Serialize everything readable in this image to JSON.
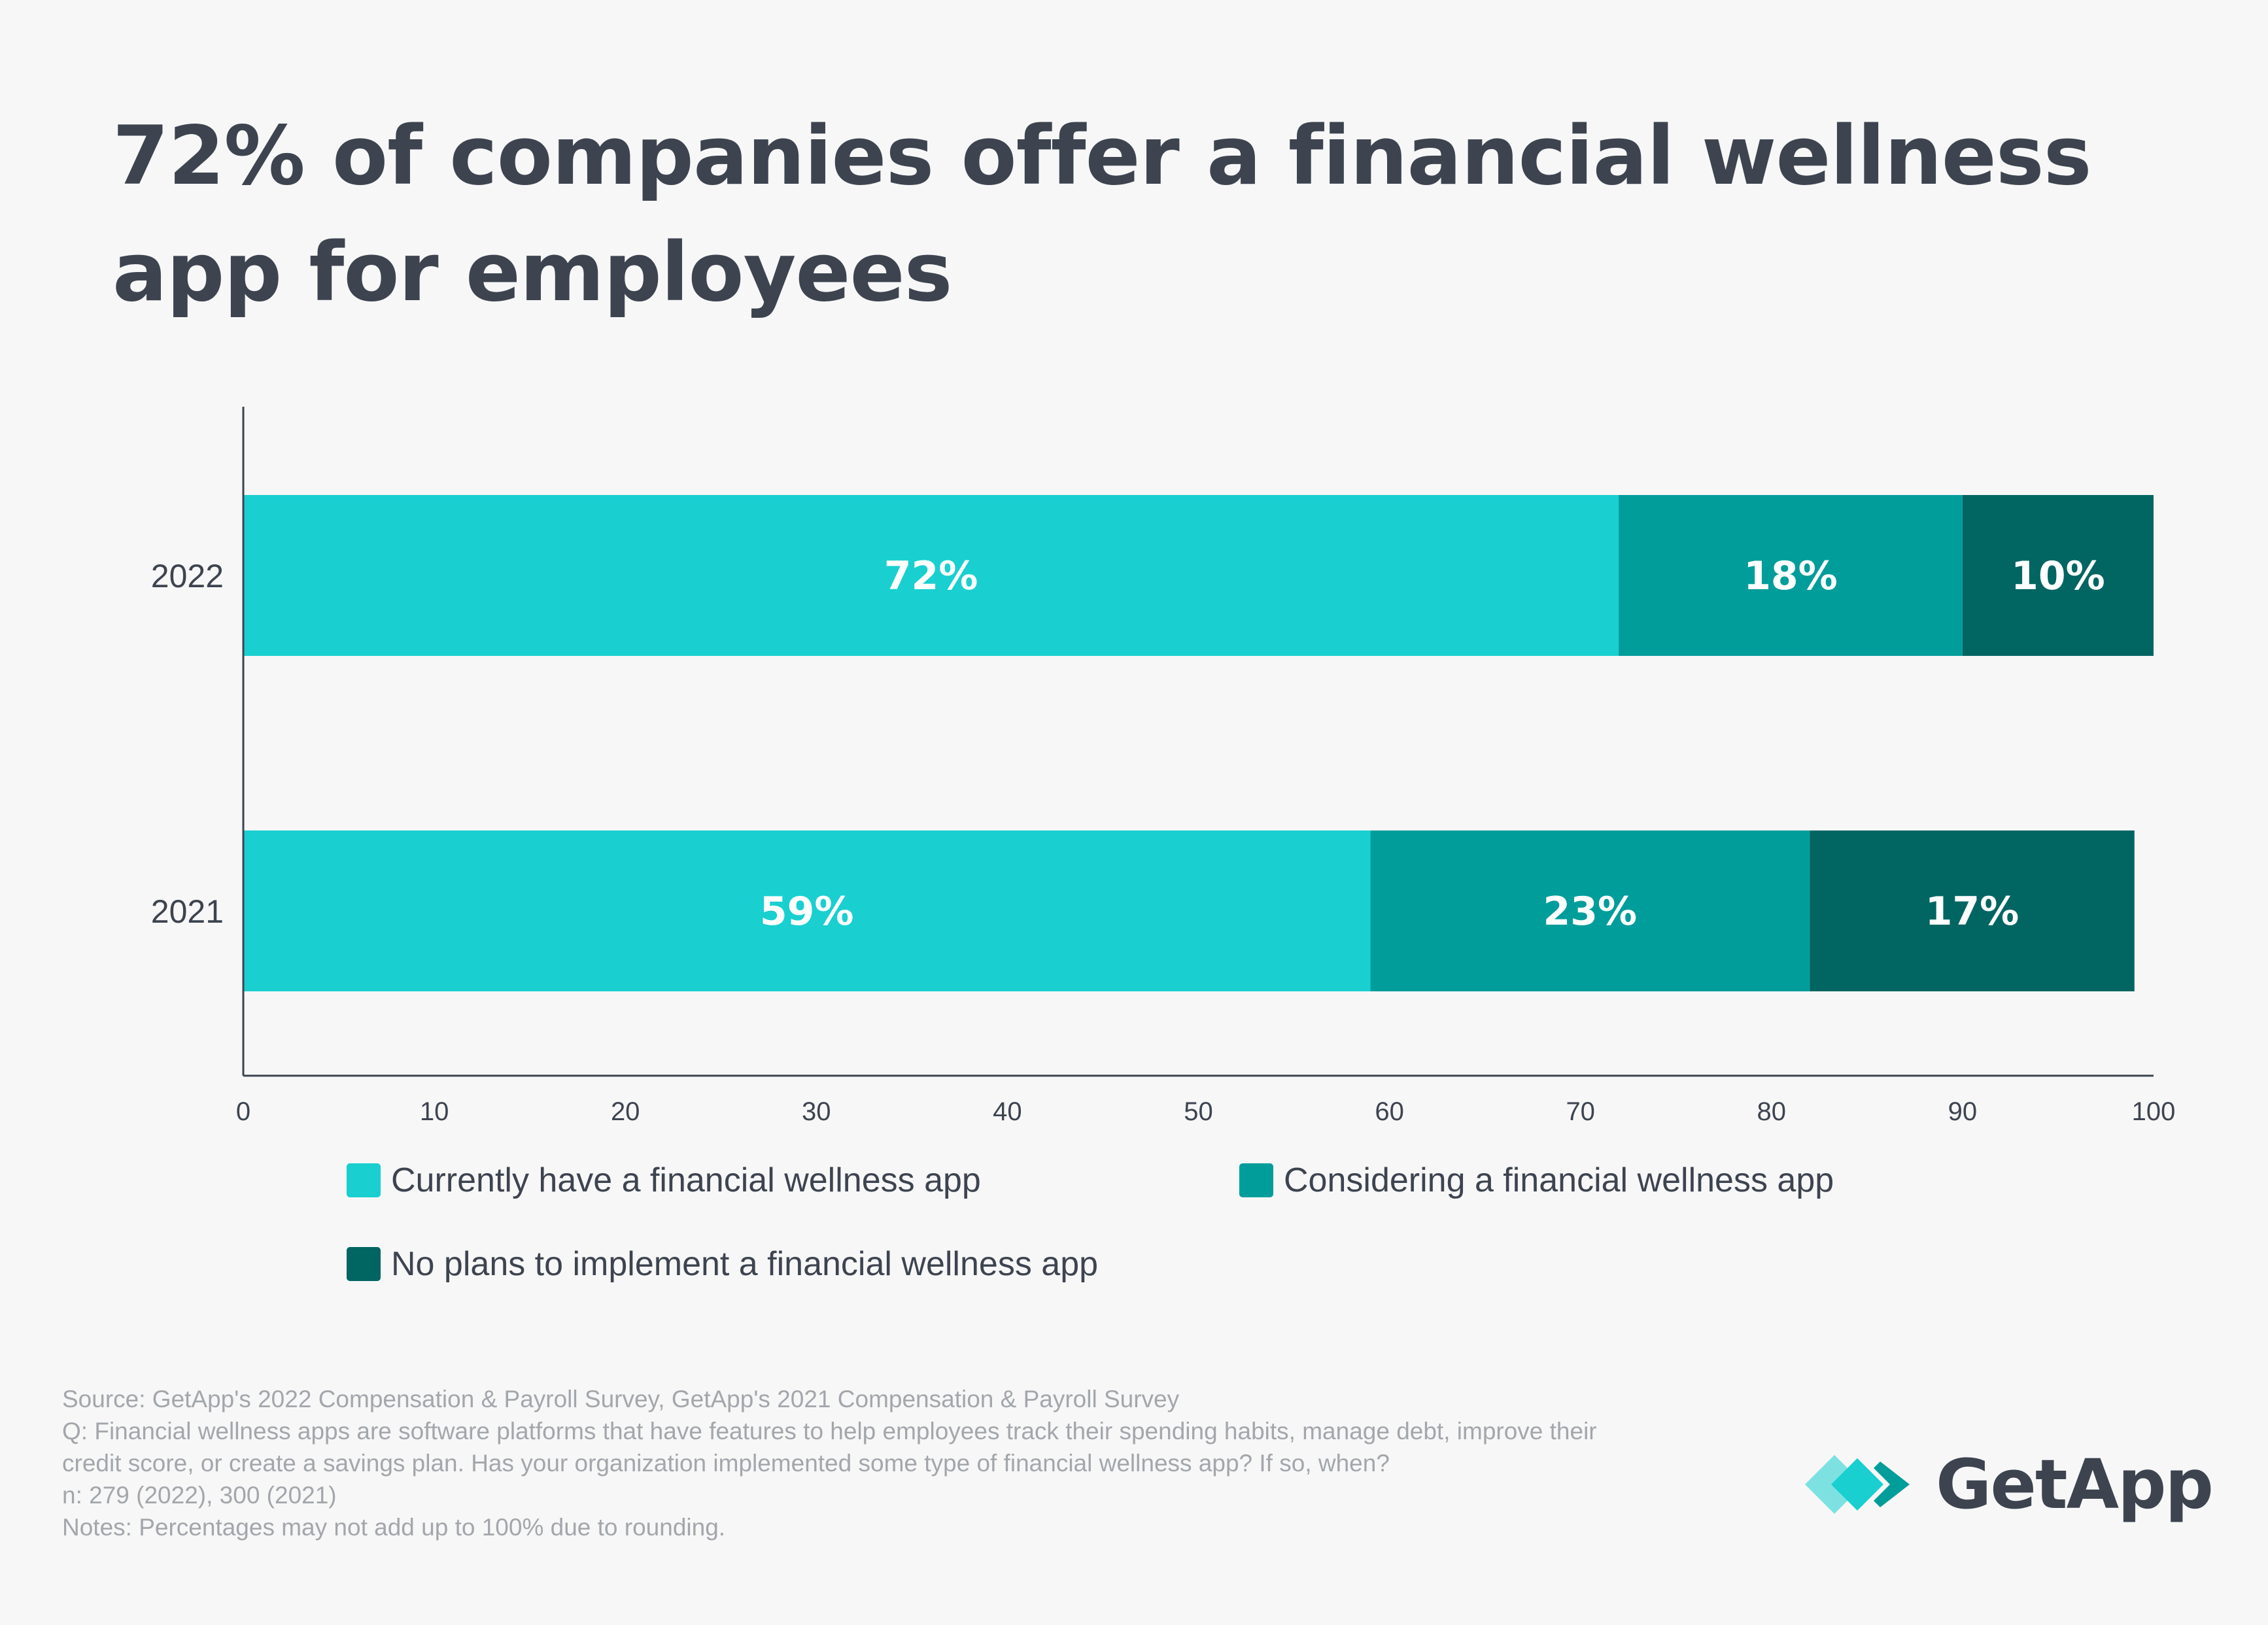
{
  "title": "72% of companies offer a financial wellness app for employees",
  "colors": {
    "current": "#19cfd0",
    "considering": "#019d9b",
    "no_plans": "#016562",
    "axis": "#3d4450",
    "label_text": "#ffffff"
  },
  "chart_data": {
    "type": "bar",
    "orientation": "horizontal",
    "stacked": true,
    "categories": [
      "2022",
      "2021"
    ],
    "series": [
      {
        "name": "Currently have a financial wellness app",
        "values": [
          72,
          59
        ],
        "labels": [
          "72%",
          "59%"
        ]
      },
      {
        "name": "Considering a financial wellness app",
        "values": [
          18,
          23
        ],
        "labels": [
          "18%",
          "23%"
        ]
      },
      {
        "name": "No plans to implement a financial wellness app",
        "values": [
          10,
          17
        ],
        "labels": [
          "10%",
          "17%"
        ]
      }
    ],
    "xlim": [
      0,
      100
    ],
    "xticks": [
      0,
      10,
      20,
      30,
      40,
      50,
      60,
      70,
      80,
      90,
      100
    ],
    "xlabel": "",
    "ylabel": "",
    "grid": false,
    "legend_position": "bottom"
  },
  "legend": [
    {
      "label": "Currently have a financial wellness app"
    },
    {
      "label": "Considering a financial wellness app"
    },
    {
      "label": "No plans to implement a financial wellness app"
    }
  ],
  "footer": {
    "source": "Source: GetApp's 2022 Compensation & Payroll Survey, GetApp's 2021 Compensation & Payroll Survey",
    "question": "Q: Financial wellness apps are software platforms that have features to help employees track their spending habits, manage debt, improve their credit score, or create a savings plan. Has your organization implemented some type of financial wellness app? If so, when?",
    "n": "n: 279 (2022), 300 (2021)",
    "notes": "Notes: Percentages may not add up to 100% due to rounding."
  },
  "logo": {
    "text": "GetApp"
  }
}
